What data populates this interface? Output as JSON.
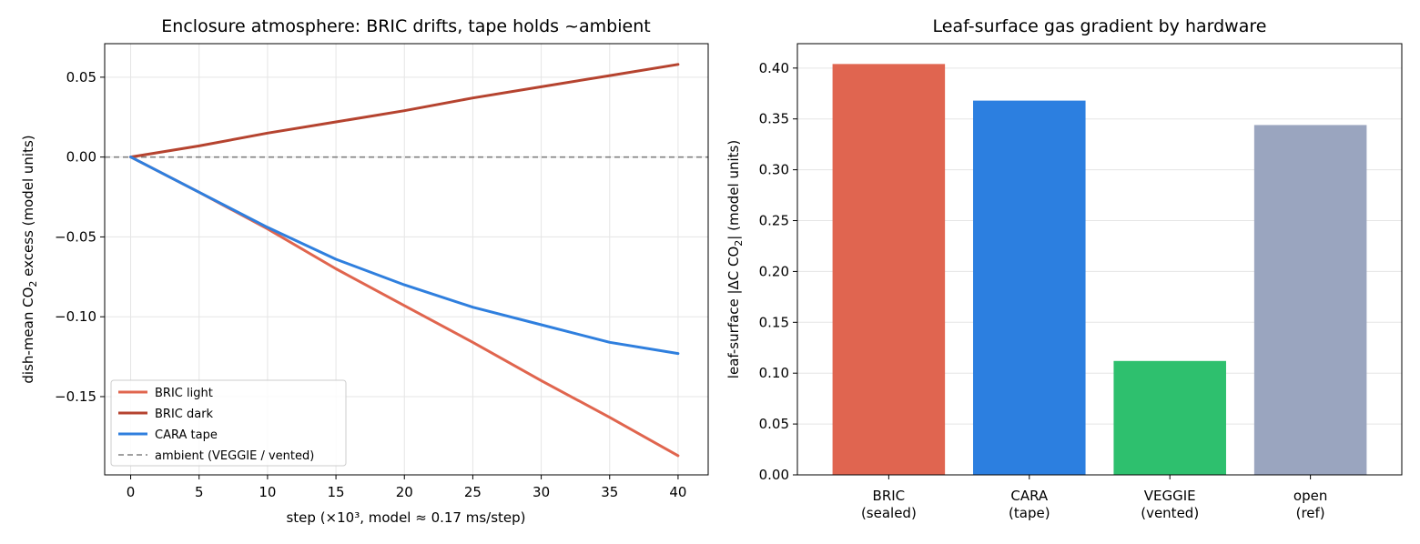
{
  "chart_data": [
    {
      "type": "line",
      "title": "Enclosure atmosphere: BRIC drifts, tape holds ~ambient",
      "xlabel": "step (×10³, model ≈ 0.17 ms/step)",
      "ylabel_pre": "dish-mean CO",
      "ylabel_sub": "2",
      "ylabel_post": " excess (model units)",
      "xlim": [
        -1.9,
        42.2
      ],
      "ylim": [
        -0.199,
        0.071
      ],
      "xticks": [
        0,
        5,
        10,
        15,
        20,
        25,
        30,
        35,
        40
      ],
      "xtick_labels": [
        "0",
        "5",
        "10",
        "15",
        "20",
        "25",
        "30",
        "35",
        "40"
      ],
      "yticks": [
        -0.15,
        -0.1,
        -0.05,
        0.0,
        0.05
      ],
      "ytick_labels": [
        "−0.15",
        "−0.10",
        "−0.05",
        "0.00",
        "0.05"
      ],
      "grid": true,
      "legend_placement": "lower-left",
      "x": [
        0,
        5,
        10,
        15,
        20,
        25,
        30,
        35,
        40
      ],
      "series": [
        {
          "name": "BRIC light",
          "color": "#e0654e",
          "style": "solid",
          "values": [
            0,
            -0.022,
            -0.045,
            -0.07,
            -0.093,
            -0.116,
            -0.14,
            -0.163,
            -0.187
          ]
        },
        {
          "name": "BRIC dark",
          "color": "#b5432f",
          "style": "solid",
          "values": [
            0,
            0.007,
            0.015,
            0.022,
            0.029,
            0.037,
            0.044,
            0.051,
            0.058
          ]
        },
        {
          "name": "CARA tape",
          "color": "#2f7fde",
          "style": "solid",
          "values": [
            0,
            -0.022,
            -0.044,
            -0.064,
            -0.08,
            -0.094,
            -0.105,
            -0.116,
            -0.123
          ]
        },
        {
          "name": "ambient (VEGGIE / vented)",
          "color": "#808080",
          "style": "dashed",
          "values": [
            0,
            0,
            0,
            0,
            0,
            0,
            0,
            0,
            0
          ]
        }
      ]
    },
    {
      "type": "bar",
      "title": "Leaf-surface gas gradient by hardware",
      "ylabel_pre": "leaf-surface |ΔC CO",
      "ylabel_sub": "2",
      "ylabel_post": "| (model units)",
      "categories": [
        [
          "BRIC",
          "(sealed)"
        ],
        [
          "CARA",
          "(tape)"
        ],
        [
          "VEGGIE",
          "(vented)"
        ],
        [
          "open",
          "(ref)"
        ]
      ],
      "values": [
        0.404,
        0.368,
        0.112,
        0.344
      ],
      "colors": [
        "#e06550",
        "#2c7fe0",
        "#2ec06e",
        "#9aa5bf"
      ],
      "ylim": [
        0,
        0.424
      ],
      "yticks": [
        0.0,
        0.05,
        0.1,
        0.15,
        0.2,
        0.25,
        0.3,
        0.35,
        0.4
      ],
      "ytick_labels": [
        "0.00",
        "0.05",
        "0.10",
        "0.15",
        "0.20",
        "0.25",
        "0.30",
        "0.35",
        "0.40"
      ],
      "grid": "y"
    }
  ]
}
